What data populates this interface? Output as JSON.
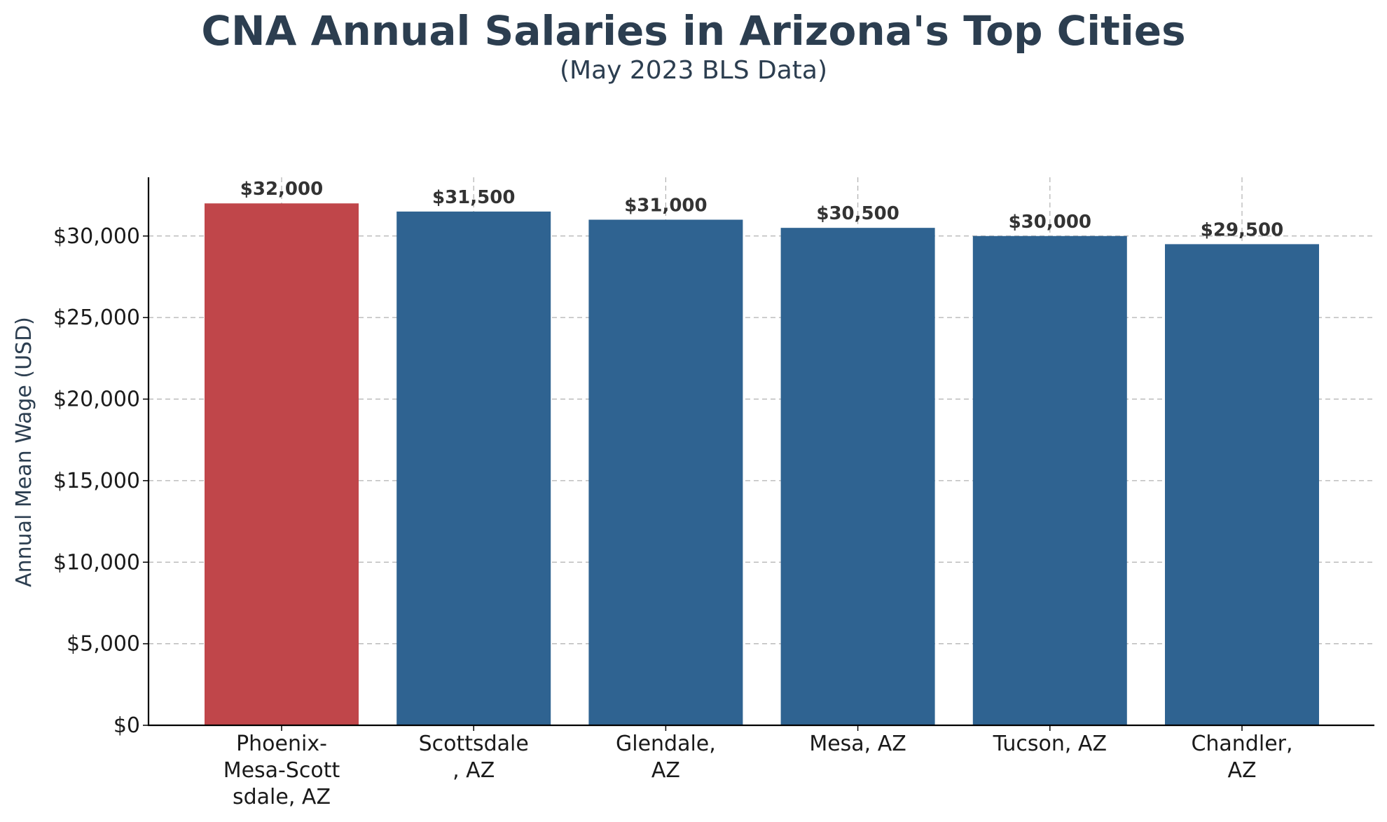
{
  "chart_data": {
    "type": "bar",
    "title": "CNA Annual Salaries in Arizona's Top Cities",
    "subtitle": "(May 2023 BLS Data)",
    "xlabel": "",
    "ylabel": "Annual Mean Wage (USD)",
    "categories": [
      [
        "Phoenix-",
        "Mesa-Scott",
        "sdale, AZ"
      ],
      [
        "Scottsdale",
        ", AZ"
      ],
      [
        "Glendale,",
        "AZ"
      ],
      [
        "Mesa, AZ"
      ],
      [
        "Tucson, AZ"
      ],
      [
        "Chandler,",
        "AZ"
      ]
    ],
    "values": [
      32000,
      31500,
      31000,
      30500,
      30000,
      29500
    ],
    "data_labels": [
      "$32,000",
      "$31,500",
      "$31,000",
      "$30,500",
      "$30,000",
      "$29,500"
    ],
    "ylim": [
      0,
      33600
    ],
    "yticks": [
      0,
      5000,
      10000,
      15000,
      20000,
      25000,
      30000
    ],
    "ytick_labels": [
      "$0",
      "$5,000",
      "$10,000",
      "$15,000",
      "$20,000",
      "$25,000",
      "$30,000"
    ],
    "grid": true,
    "colors": {
      "highlight": "#c0464a",
      "default": "#2f6391",
      "title": "#2c3e50"
    },
    "highlight_index": 0
  }
}
